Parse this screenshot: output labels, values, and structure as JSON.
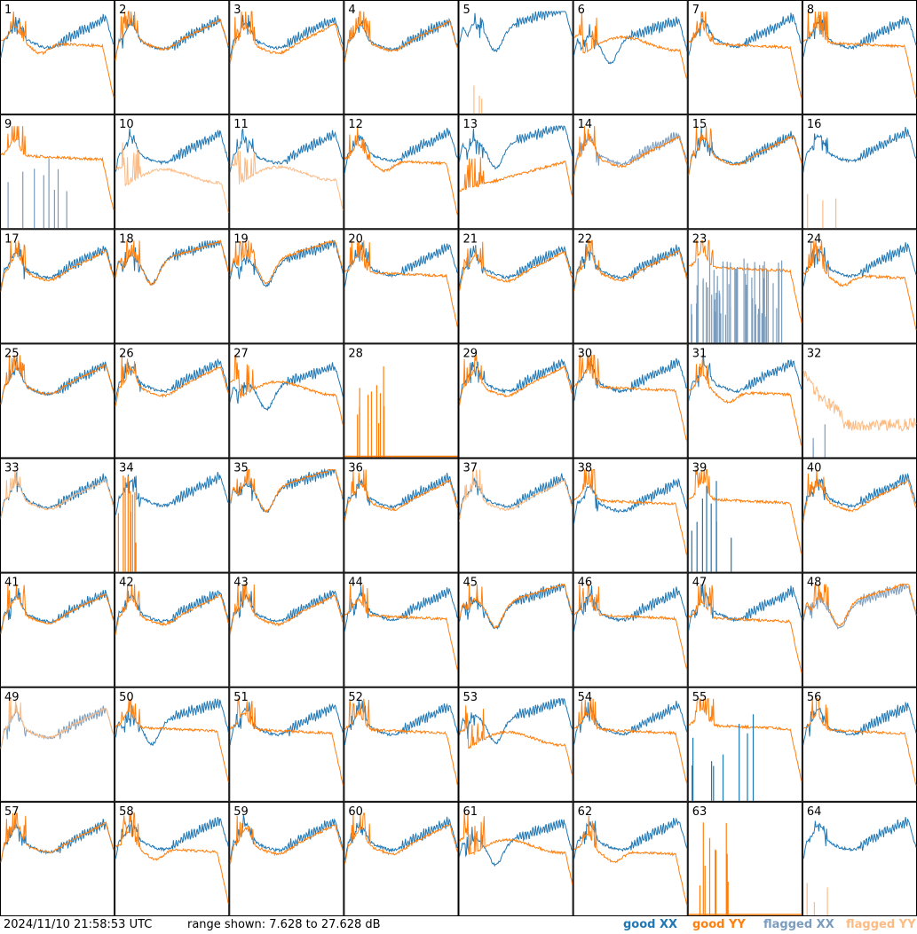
{
  "chart_data": {
    "type": "line",
    "grid": {
      "rows": 8,
      "cols": 8
    },
    "y_unit": "dB",
    "y_range": [
      7.628,
      27.628
    ],
    "panels": [
      {
        "id": "1",
        "shape": "A",
        "xx": "good",
        "yy": "good",
        "yyStyle": "drop",
        "xxOff": 0.6,
        "yyOff": -0.2
      },
      {
        "id": "2",
        "shape": "A",
        "xx": "good",
        "yy": "good",
        "yyStyle": "similar",
        "xxOff": 0.3,
        "yyOff": 0.8
      },
      {
        "id": "3",
        "shape": "A",
        "xx": "good",
        "yy": "good",
        "yyStyle": "similar",
        "xxOff": 0.5,
        "yyOff": 0.0
      },
      {
        "id": "4",
        "shape": "A",
        "xx": "good",
        "yy": "good",
        "yyStyle": "similar",
        "xxOff": 0.2,
        "yyOff": 0.5
      },
      {
        "id": "5",
        "shape": "dip",
        "xx": "good",
        "yy": "flagged",
        "yyStyle": "spikes",
        "xxOff": 1.0,
        "yyOff": 0.0
      },
      {
        "id": "6",
        "shape": "dip",
        "xx": "good",
        "yy": "good",
        "yyStyle": "wave",
        "xxOff": -1.5,
        "yyOff": 1.0
      },
      {
        "id": "7",
        "shape": "A",
        "xx": "good",
        "yy": "good",
        "yyStyle": "flat",
        "xxOff": 0.8,
        "yyOff": -0.5
      },
      {
        "id": "8",
        "shape": "A",
        "xx": "good",
        "yy": "good",
        "yyStyle": "flat",
        "xxOff": 0.6,
        "yyOff": -0.3
      },
      {
        "id": "9",
        "shape": "none",
        "xx": "flagged",
        "yy": "good",
        "yyStyle": "yyonly",
        "xxOff": 0.0,
        "yyOff": 0.0
      },
      {
        "id": "10",
        "shape": "A",
        "xx": "good",
        "yy": "flagged",
        "yyStyle": "wave",
        "xxOff": 0.5,
        "yyOff": -2.5
      },
      {
        "id": "11",
        "shape": "A",
        "xx": "good",
        "yy": "flagged",
        "yyStyle": "wave",
        "xxOff": 0.4,
        "yyOff": -2.0
      },
      {
        "id": "12",
        "shape": "A",
        "xx": "good",
        "yy": "good",
        "yyStyle": "drop",
        "xxOff": 0.8,
        "yyOff": -0.8
      },
      {
        "id": "13",
        "shape": "dip",
        "xx": "good",
        "yy": "good",
        "yyStyle": "rising",
        "xxOff": 0.5,
        "yyOff": -1.0
      },
      {
        "id": "14",
        "shape": "A",
        "xx": "flagged",
        "yy": "good",
        "yyStyle": "similar",
        "xxOff": 0.3,
        "yyOff": 0.3
      },
      {
        "id": "15",
        "shape": "A",
        "xx": "good",
        "yy": "good",
        "yyStyle": "similar",
        "xxOff": 0.3,
        "yyOff": 0.6
      },
      {
        "id": "16",
        "shape": "A",
        "xx": "good",
        "yy": "flagged",
        "yyStyle": "spikes",
        "xxOff": 0.8,
        "yyOff": 0.0
      },
      {
        "id": "17",
        "shape": "A",
        "xx": "good",
        "yy": "good",
        "yyStyle": "similar",
        "xxOff": 0.4,
        "yyOff": 0.4
      },
      {
        "id": "18",
        "shape": "dip",
        "xx": "good",
        "yy": "good",
        "yyStyle": "similar",
        "xxOff": 0.2,
        "yyOff": 0.6
      },
      {
        "id": "19",
        "shape": "dip",
        "xx": "good",
        "yy": "good",
        "yyStyle": "similar",
        "xxOff": -0.2,
        "yyOff": 0.8
      },
      {
        "id": "20",
        "shape": "A",
        "xx": "good",
        "yy": "good",
        "yyStyle": "flat",
        "xxOff": 0.8,
        "yyOff": -0.4
      },
      {
        "id": "21",
        "shape": "A",
        "xx": "good",
        "yy": "good",
        "yyStyle": "similar",
        "xxOff": 0.5,
        "yyOff": 0.2
      },
      {
        "id": "22",
        "shape": "A",
        "xx": "good",
        "yy": "good",
        "yyStyle": "similar",
        "xxOff": 0.4,
        "yyOff": 0.4
      },
      {
        "id": "23",
        "shape": "noisy",
        "xx": "flagged",
        "yy": "good",
        "yyStyle": "flat",
        "xxOff": 0.0,
        "yyOff": 0.6
      },
      {
        "id": "24",
        "shape": "A",
        "xx": "good",
        "yy": "good",
        "yyStyle": "drop",
        "xxOff": 0.7,
        "yyOff": -0.8
      },
      {
        "id": "25",
        "shape": "A",
        "xx": "good",
        "yy": "good",
        "yyStyle": "similar",
        "xxOff": 0.0,
        "yyOff": 0.5
      },
      {
        "id": "26",
        "shape": "A",
        "xx": "good",
        "yy": "good",
        "yyStyle": "similar",
        "xxOff": 0.6,
        "yyOff": 0.2
      },
      {
        "id": "27",
        "shape": "dip",
        "xx": "good",
        "yy": "good",
        "yyStyle": "wave",
        "xxOff": -2.0,
        "yyOff": 0.8
      },
      {
        "id": "28",
        "shape": "none",
        "xx": "good",
        "yy": "good",
        "yyStyle": "spikesonly",
        "xxOff": 0.0,
        "yyOff": 0.0
      },
      {
        "id": "29",
        "shape": "A",
        "xx": "good",
        "yy": "good",
        "yyStyle": "similar",
        "xxOff": 0.6,
        "yyOff": 0.2
      },
      {
        "id": "30",
        "shape": "A",
        "xx": "good",
        "yy": "good",
        "yyStyle": "flat",
        "xxOff": 0.6,
        "yyOff": -0.4
      },
      {
        "id": "31",
        "shape": "A",
        "xx": "good",
        "yy": "good",
        "yyStyle": "drop",
        "xxOff": 0.6,
        "yyOff": -1.2
      },
      {
        "id": "32",
        "shape": "none",
        "xx": "flagged",
        "yy": "flagged",
        "yyStyle": "noisy",
        "xxOff": 0.0,
        "yyOff": 0.0
      },
      {
        "id": "33",
        "shape": "A",
        "xx": "good",
        "yy": "flagged",
        "yyStyle": "similar",
        "xxOff": 0.2,
        "yyOff": 0.4
      },
      {
        "id": "34",
        "shape": "A",
        "xx": "good",
        "yy": "good",
        "yyStyle": "spikesonly",
        "xxOff": 0.6,
        "yyOff": 0.0
      },
      {
        "id": "35",
        "shape": "dip",
        "xx": "good",
        "yy": "good",
        "yyStyle": "similar",
        "xxOff": 0.3,
        "yyOff": 1.0
      },
      {
        "id": "36",
        "shape": "A",
        "xx": "good",
        "yy": "good",
        "yyStyle": "similar",
        "xxOff": 0.4,
        "yyOff": 0.3
      },
      {
        "id": "37",
        "shape": "A",
        "xx": "good",
        "yy": "flagged",
        "yyStyle": "similar",
        "xxOff": 0.4,
        "yyOff": 0.3
      },
      {
        "id": "38",
        "shape": "A",
        "xx": "good",
        "yy": "good",
        "yyStyle": "flat",
        "xxOff": -0.5,
        "yyOff": -0.2
      },
      {
        "id": "39",
        "shape": "none",
        "xx": "good",
        "yy": "good",
        "yyStyle": "yyonly",
        "xxOff": 0.0,
        "yyOff": 0.0
      },
      {
        "id": "40",
        "shape": "A",
        "xx": "good",
        "yy": "good",
        "yyStyle": "similar",
        "xxOff": 0.5,
        "yyOff": 0.2
      },
      {
        "id": "41",
        "shape": "A",
        "xx": "good",
        "yy": "good",
        "yyStyle": "similar",
        "xxOff": 0.3,
        "yyOff": 0.5
      },
      {
        "id": "42",
        "shape": "A",
        "xx": "good",
        "yy": "good",
        "yyStyle": "similar",
        "xxOff": 0.4,
        "yyOff": 0.3
      },
      {
        "id": "43",
        "shape": "A",
        "xx": "good",
        "yy": "good",
        "yyStyle": "similar",
        "xxOff": 0.4,
        "yyOff": 0.3
      },
      {
        "id": "44",
        "shape": "A",
        "xx": "good",
        "yy": "good",
        "yyStyle": "flat",
        "xxOff": 0.7,
        "yyOff": -0.3
      },
      {
        "id": "45",
        "shape": "dip",
        "xx": "good",
        "yy": "good",
        "yyStyle": "similar",
        "xxOff": 0.0,
        "yyOff": 0.8
      },
      {
        "id": "46",
        "shape": "A",
        "xx": "good",
        "yy": "good",
        "yyStyle": "flat",
        "xxOff": 0.6,
        "yyOff": -0.2
      },
      {
        "id": "47",
        "shape": "A",
        "xx": "good",
        "yy": "good",
        "yyStyle": "flat",
        "xxOff": 0.7,
        "yyOff": -0.8
      },
      {
        "id": "48",
        "shape": "dip",
        "xx": "flagged",
        "yy": "good",
        "yyStyle": "similar",
        "xxOff": 0.0,
        "yyOff": 1.0
      },
      {
        "id": "49",
        "shape": "A",
        "xx": "flagged",
        "yy": "flagged",
        "yyStyle": "similar",
        "xxOff": 0.0,
        "yyOff": 0.5
      },
      {
        "id": "50",
        "shape": "dip",
        "xx": "good",
        "yy": "good",
        "yyStyle": "flat",
        "xxOff": -0.3,
        "yyOff": 0.2
      },
      {
        "id": "51",
        "shape": "A",
        "xx": "good",
        "yy": "good",
        "yyStyle": "flat",
        "xxOff": 0.6,
        "yyOff": -0.2
      },
      {
        "id": "52",
        "shape": "A",
        "xx": "good",
        "yy": "good",
        "yyStyle": "flat",
        "xxOff": 0.6,
        "yyOff": -0.2
      },
      {
        "id": "53",
        "shape": "dip",
        "xx": "good",
        "yy": "good",
        "yyStyle": "wave",
        "xxOff": 0.0,
        "yyOff": -0.5
      },
      {
        "id": "54",
        "shape": "A",
        "xx": "good",
        "yy": "good",
        "yyStyle": "flat",
        "xxOff": 0.7,
        "yyOff": -0.2
      },
      {
        "id": "55",
        "shape": "none",
        "xx": "good",
        "yy": "good",
        "yyStyle": "yyonly",
        "xxOff": 0.0,
        "yyOff": 0.6
      },
      {
        "id": "56",
        "shape": "A",
        "xx": "good",
        "yy": "good",
        "yyStyle": "flat",
        "xxOff": 0.6,
        "yyOff": -0.3
      },
      {
        "id": "57",
        "shape": "A",
        "xx": "good",
        "yy": "good",
        "yyStyle": "similar",
        "xxOff": 0.0,
        "yyOff": 0.5
      },
      {
        "id": "58",
        "shape": "A",
        "xx": "good",
        "yy": "good",
        "yyStyle": "drop",
        "xxOff": 0.6,
        "yyOff": -1.0
      },
      {
        "id": "59",
        "shape": "A",
        "xx": "good",
        "yy": "good",
        "yyStyle": "similar",
        "xxOff": 0.4,
        "yyOff": 0.2
      },
      {
        "id": "60",
        "shape": "A",
        "xx": "good",
        "yy": "good",
        "yyStyle": "similar",
        "xxOff": 0.4,
        "yyOff": 0.2
      },
      {
        "id": "61",
        "shape": "dip",
        "xx": "good",
        "yy": "good",
        "yyStyle": "wave",
        "xxOff": -1.5,
        "yyOff": 0.8
      },
      {
        "id": "62",
        "shape": "A",
        "xx": "good",
        "yy": "good",
        "yyStyle": "drop",
        "xxOff": 0.5,
        "yyOff": -1.5
      },
      {
        "id": "63",
        "shape": "none",
        "xx": "good",
        "yy": "good",
        "yyStyle": "spikesonly",
        "xxOff": 0.0,
        "yyOff": 0.0
      },
      {
        "id": "64",
        "shape": "A",
        "xx": "good",
        "yy": "flagged",
        "yyStyle": "spikes",
        "xxOff": 0.5,
        "yyOff": 0.0
      }
    ]
  },
  "footer": {
    "timestamp": "2024/11/10 21:58:53 UTC",
    "range": "range shown: 7.628 to 27.628 dB",
    "legend": [
      {
        "label": "good XX",
        "color": "#1f77b4"
      },
      {
        "label": "good YY",
        "color": "#ff7f0e"
      },
      {
        "label": "flagged XX",
        "color": "#7b9cbd"
      },
      {
        "label": "flagged YY",
        "color": "#fdbb84"
      }
    ]
  },
  "colors": {
    "good_xx": "#1f77b4",
    "good_yy": "#ff7f0e",
    "flagged_xx": "#7b9cbd",
    "flagged_yy": "#fdbb84"
  }
}
